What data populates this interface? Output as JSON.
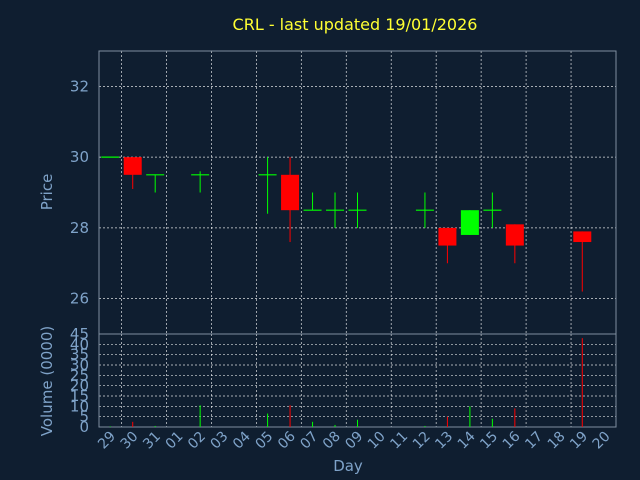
{
  "chart_data": {
    "type": "candlestick",
    "title": "CRL - last updated 19/01/2026",
    "xlabel": "Day",
    "colors": {
      "up": "#00ff00",
      "down": "#ff0000",
      "background": "#0f1e30",
      "title": "#ffff33",
      "axis_text": "#7fa3c9",
      "grid": "#ffffff"
    },
    "price_panel": {
      "ylabel": "Price",
      "ylim": [
        25.0,
        33.0
      ],
      "yticks": [
        26,
        28,
        30,
        32
      ],
      "grid": true
    },
    "volume_panel": {
      "ylabel": "Volume (0000)",
      "ylim": [
        0,
        45
      ],
      "yticks": [
        0,
        5,
        10,
        15,
        20,
        25,
        30,
        35,
        40,
        45
      ],
      "grid": true
    },
    "x_tick_labels": [
      "29",
      "30",
      "31",
      "01",
      "02",
      "03",
      "04",
      "05",
      "06",
      "07",
      "08",
      "09",
      "10",
      "11",
      "12",
      "13",
      "14",
      "15",
      "16",
      "17",
      "18",
      "19",
      "20"
    ],
    "candles": [
      {
        "x": "29",
        "open": 30.0,
        "high": 30.0,
        "low": 30.0,
        "close": 30.0,
        "volume": 0.3
      },
      {
        "x": "30",
        "open": 30.0,
        "high": 30.0,
        "low": 29.1,
        "close": 29.5,
        "volume": 2.5
      },
      {
        "x": "31",
        "open": 29.5,
        "high": 29.5,
        "low": 29.0,
        "close": 29.5,
        "volume": 0.5
      },
      {
        "x": "02",
        "open": 29.5,
        "high": 29.6,
        "low": 29.0,
        "close": 29.5,
        "volume": 10.5
      },
      {
        "x": "05",
        "open": 29.5,
        "high": 30.0,
        "low": 28.4,
        "close": 29.5,
        "volume": 6.5
      },
      {
        "x": "06",
        "open": 29.5,
        "high": 30.0,
        "low": 27.6,
        "close": 28.5,
        "volume": 10.5
      },
      {
        "x": "07",
        "open": 28.5,
        "high": 29.0,
        "low": 28.5,
        "close": 28.5,
        "volume": 2.5
      },
      {
        "x": "08",
        "open": 28.5,
        "high": 29.0,
        "low": 28.0,
        "close": 28.5,
        "volume": 1.0
      },
      {
        "x": "09",
        "open": 28.5,
        "high": 29.0,
        "low": 28.0,
        "close": 28.5,
        "volume": 3.5
      },
      {
        "x": "12",
        "open": 28.5,
        "high": 29.0,
        "low": 28.0,
        "close": 28.5,
        "volume": 0.5
      },
      {
        "x": "13",
        "open": 28.0,
        "high": 28.0,
        "low": 27.0,
        "close": 27.5,
        "volume": 5.0
      },
      {
        "x": "14",
        "open": 27.8,
        "high": 28.5,
        "low": 27.8,
        "close": 28.5,
        "volume": 10.0
      },
      {
        "x": "15",
        "open": 28.5,
        "high": 29.0,
        "low": 28.0,
        "close": 28.5,
        "volume": 4.0
      },
      {
        "x": "16",
        "open": 28.1,
        "high": 28.1,
        "low": 27.0,
        "close": 27.5,
        "volume": 9.0
      },
      {
        "x": "19",
        "open": 27.9,
        "high": 27.9,
        "low": 26.2,
        "close": 27.6,
        "volume": 43.0
      }
    ]
  }
}
